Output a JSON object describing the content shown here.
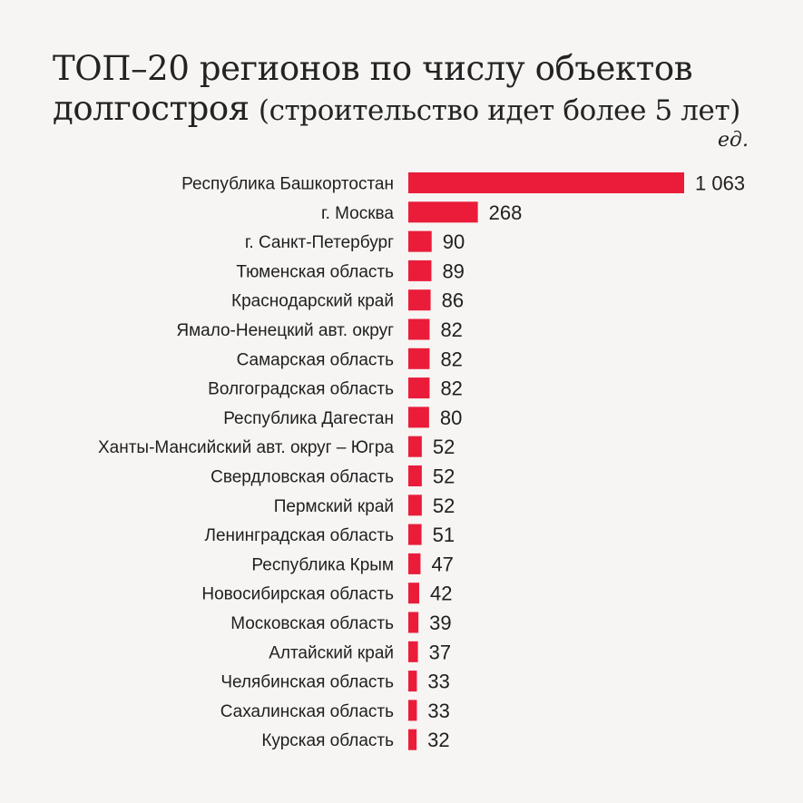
{
  "title_line1": "ТОП–20 регионов по числу объектов",
  "title_line2_main": "долгостроя",
  "title_line2_sub": "(строительство идет более 5 лет)",
  "unit": "ед.",
  "bar_color": "#ea1c3a",
  "chart_data": {
    "type": "bar",
    "orientation": "horizontal",
    "title": "ТОП–20 регионов по числу объектов долгостроя (строительство идет более 5 лет)",
    "unit": "ед.",
    "categories": [
      "Республика Башкортостан",
      "г. Москва",
      "г. Санкт-Петербург",
      "Тюменская область",
      "Краснодарский край",
      "Ямало-Ненецкий авт. округ",
      "Самарская область",
      "Волгоградская область",
      "Республика Дагестан",
      "Ханты-Мансийский авт. округ – Югра",
      "Свердловская область",
      "Пермский край",
      "Ленинградская область",
      "Республика Крым",
      "Новосибирская область",
      "Московская область",
      "Алтайский край",
      "Челябинская область",
      "Сахалинская область",
      "Курская область"
    ],
    "values": [
      1063,
      268,
      90,
      89,
      86,
      82,
      82,
      82,
      80,
      52,
      52,
      52,
      51,
      47,
      42,
      39,
      37,
      33,
      33,
      32
    ],
    "value_labels": [
      "1 063",
      "268",
      "90",
      "89",
      "86",
      "82",
      "82",
      "82",
      "80",
      "52",
      "52",
      "52",
      "51",
      "47",
      "42",
      "39",
      "37",
      "33",
      "33",
      "32"
    ],
    "xlim": [
      0,
      1063
    ],
    "grid": false,
    "legend": "none"
  }
}
